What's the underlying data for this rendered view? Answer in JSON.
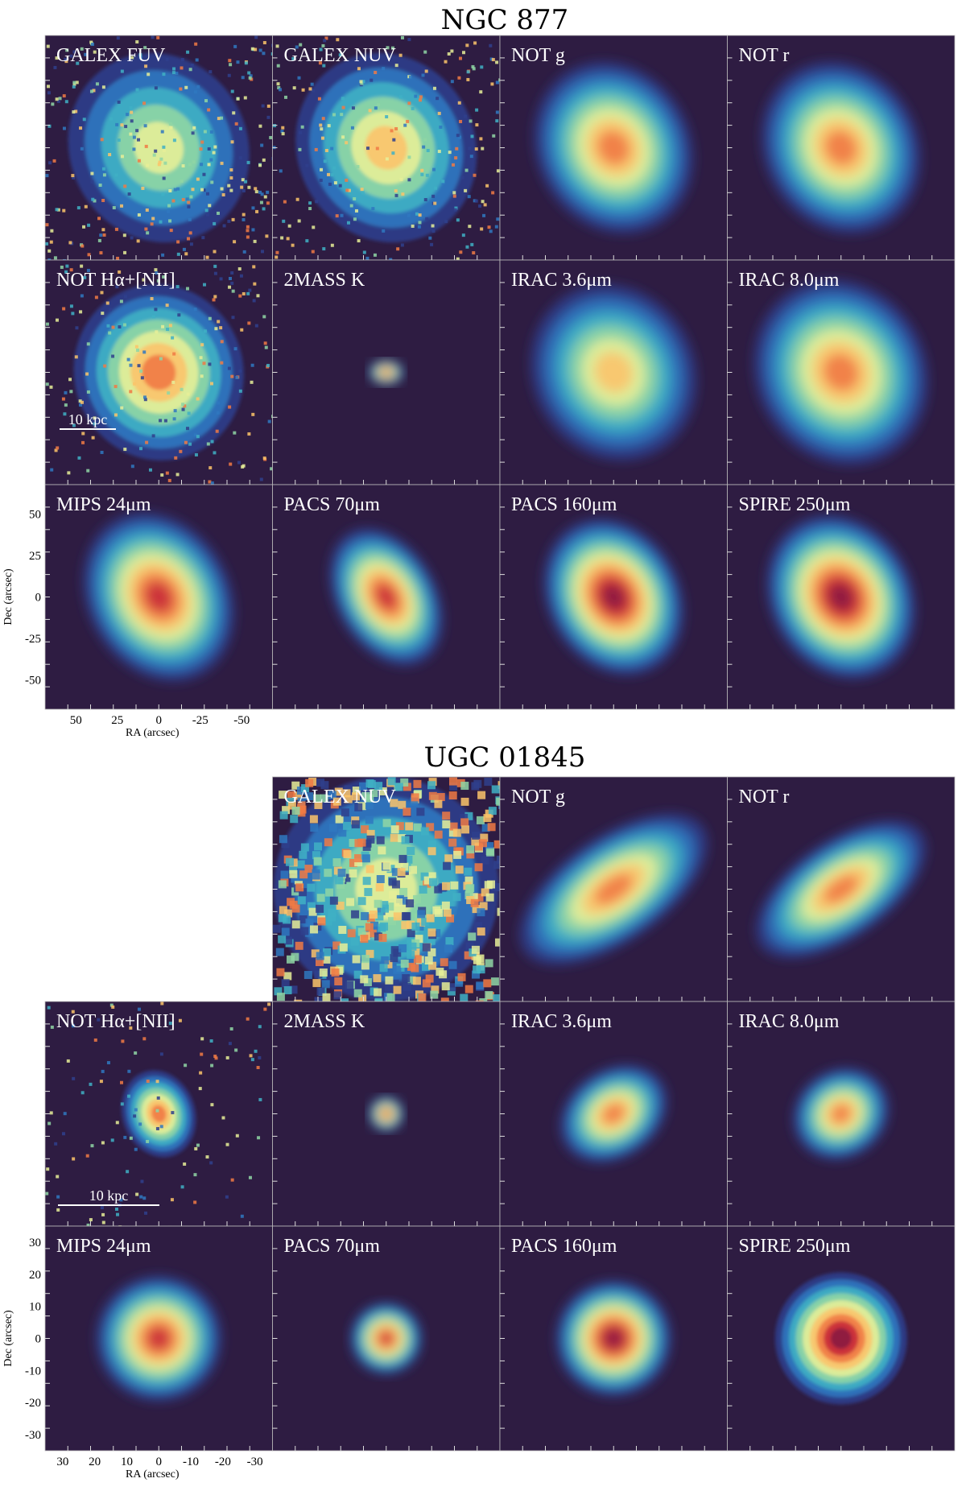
{
  "figures": [
    {
      "title": "NGC 877",
      "panels": [
        [
          "GALEX FUV",
          "GALEX NUV",
          "NOT g",
          "NOT r"
        ],
        [
          "NOT Hα+[NII]",
          "2MASS K",
          "IRAC 3.6μm",
          "IRAC 8.0μm"
        ],
        [
          "MIPS 24μm",
          "PACS 70μm",
          "PACS 160μm",
          "SPIRE 250μm"
        ]
      ],
      "scale_bar": "10 kpc",
      "xlabel": "RA (arcsec)",
      "ylabel": "Dec (arcsec)",
      "xticks": [
        50,
        25,
        0,
        -25,
        -50
      ],
      "yticks": [
        50,
        25,
        0,
        -25,
        -50
      ]
    },
    {
      "title": "UGC 01845",
      "panels": [
        [
          null,
          "GALEX NUV",
          "NOT g",
          "NOT r"
        ],
        [
          "NOT Hα+[NII]",
          "2MASS K",
          "IRAC 3.6μm",
          "IRAC 8.0μm"
        ],
        [
          "MIPS 24μm",
          "PACS 70μm",
          "PACS 160μm",
          "SPIRE 250μm"
        ]
      ],
      "scale_bar": "10 kpc",
      "xlabel": "RA (arcsec)",
      "ylabel": "Dec (arcsec)",
      "xticks": [
        30,
        20,
        10,
        0,
        -10,
        -20,
        -30
      ],
      "yticks": [
        30,
        20,
        10,
        0,
        -10,
        -20,
        -30
      ]
    }
  ]
}
